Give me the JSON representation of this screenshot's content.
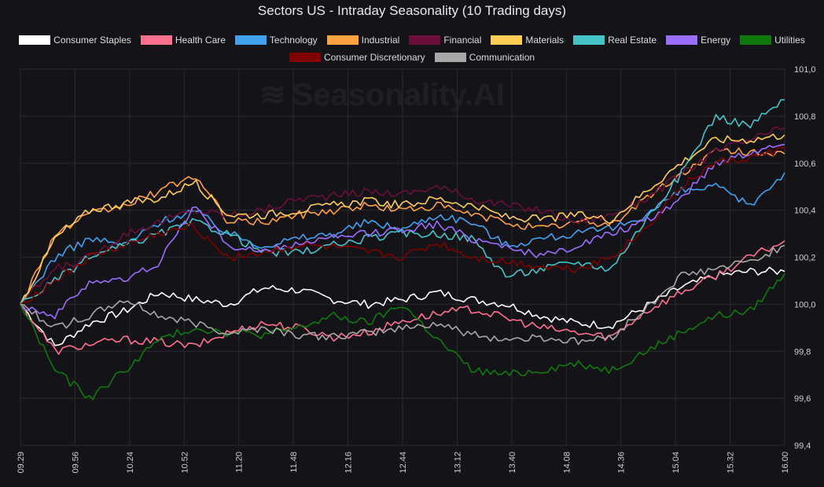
{
  "title": "Sectors US - Intraday Seasonality (10 Trading days)",
  "watermark": "Seasonality.AI",
  "legend": [
    {
      "name": "Consumer Staples",
      "color": "#ffffff"
    },
    {
      "name": "Health Care",
      "color": "#ff6f8e"
    },
    {
      "name": "Technology",
      "color": "#3ea2f0"
    },
    {
      "name": "Industrial",
      "color": "#ffa040"
    },
    {
      "name": "Financial",
      "color": "#6b0e3c"
    },
    {
      "name": "Materials",
      "color": "#ffcc55"
    },
    {
      "name": "Real Estate",
      "color": "#45c4c8"
    },
    {
      "name": "Energy",
      "color": "#9b6dff"
    },
    {
      "name": "Utilities",
      "color": "#0e7a0e"
    },
    {
      "name": "Consumer Discretionary",
      "color": "#800000"
    },
    {
      "name": "Communication",
      "color": "#a8a8a8"
    }
  ],
  "chart_data": {
    "type": "line",
    "title": "Sectors US - Intraday Seasonality (10 Trading days)",
    "xlabel": "",
    "ylabel": "",
    "x_ticks": [
      "09.29",
      "09.56",
      "10.24",
      "10.52",
      "11.20",
      "11.48",
      "12.16",
      "12.44",
      "13.12",
      "13.40",
      "14.08",
      "14.36",
      "15.04",
      "15.32",
      "16.00"
    ],
    "y_ticks": [
      "99,4",
      "99,6",
      "99,8",
      "100,0",
      "100,2",
      "100,4",
      "100,6",
      "100,8",
      "101,0"
    ],
    "ylim": [
      99.4,
      101.0
    ],
    "grid": true,
    "legend_position": "top",
    "series": [
      {
        "name": "Consumer Staples",
        "color": "#ffffff",
        "values": [
          100.0,
          99.82,
          99.92,
          99.97,
          100.05,
          100.02,
          100.0,
          100.07,
          100.06,
          100.02,
          100.0,
          100.02,
          100.05,
          100.02,
          100.0,
          99.95,
          99.92,
          99.91,
          99.99,
          100.07,
          100.12,
          100.14,
          100.14
        ]
      },
      {
        "name": "Health Care",
        "color": "#ff6f8e",
        "values": [
          100.0,
          99.8,
          99.83,
          99.85,
          99.84,
          99.82,
          99.88,
          99.92,
          99.9,
          99.86,
          99.88,
          99.93,
          99.96,
          99.98,
          99.94,
          99.9,
          99.88,
          99.86,
          99.97,
          100.05,
          100.12,
          100.2,
          100.27
        ]
      },
      {
        "name": "Technology",
        "color": "#3ea2f0",
        "values": [
          100.0,
          100.2,
          100.28,
          100.25,
          100.35,
          100.4,
          100.3,
          100.25,
          100.28,
          100.3,
          100.35,
          100.32,
          100.38,
          100.35,
          100.25,
          100.28,
          100.3,
          100.32,
          100.38,
          100.48,
          100.5,
          100.42,
          100.56
        ]
      },
      {
        "name": "Industrial",
        "color": "#ffa040",
        "values": [
          100.0,
          100.3,
          100.38,
          100.42,
          100.48,
          100.55,
          100.35,
          100.35,
          100.38,
          100.4,
          100.42,
          100.4,
          100.42,
          100.38,
          100.35,
          100.32,
          100.35,
          100.34,
          100.45,
          100.55,
          100.65,
          100.65,
          100.64
        ]
      },
      {
        "name": "Financial",
        "color": "#6b0e3c",
        "values": [
          100.0,
          100.15,
          100.2,
          100.3,
          100.35,
          100.4,
          100.38,
          100.4,
          100.45,
          100.46,
          100.48,
          100.47,
          100.5,
          100.45,
          100.42,
          100.4,
          100.35,
          100.38,
          100.45,
          100.55,
          100.65,
          100.7,
          100.75
        ]
      },
      {
        "name": "Materials",
        "color": "#ffcc55",
        "values": [
          100.0,
          100.28,
          100.4,
          100.43,
          100.45,
          100.52,
          100.38,
          100.38,
          100.4,
          100.42,
          100.44,
          100.42,
          100.45,
          100.42,
          100.37,
          100.36,
          100.38,
          100.36,
          100.48,
          100.6,
          100.7,
          100.7,
          100.72
        ]
      },
      {
        "name": "Real Estate",
        "color": "#45c4c8",
        "values": [
          100.0,
          100.1,
          100.2,
          100.25,
          100.3,
          100.35,
          100.3,
          100.22,
          100.22,
          100.25,
          100.28,
          100.3,
          100.3,
          100.28,
          100.12,
          100.15,
          100.18,
          100.15,
          100.36,
          100.55,
          100.8,
          100.76,
          100.87
        ]
      },
      {
        "name": "Energy",
        "color": "#9b6dff",
        "values": [
          100.0,
          99.95,
          100.1,
          100.1,
          100.18,
          100.42,
          100.25,
          100.22,
          100.26,
          100.28,
          100.3,
          100.32,
          100.34,
          100.28,
          100.25,
          100.2,
          100.25,
          100.3,
          100.35,
          100.45,
          100.6,
          100.65,
          100.68
        ]
      },
      {
        "name": "Utilities",
        "color": "#0e7a0e",
        "values": [
          100.0,
          99.72,
          99.6,
          99.72,
          99.85,
          99.9,
          99.88,
          99.87,
          99.9,
          99.95,
          99.92,
          100.0,
          99.85,
          99.72,
          99.7,
          99.72,
          99.75,
          99.72,
          99.8,
          99.88,
          99.95,
          99.97,
          100.13
        ]
      },
      {
        "name": "Consumer Discretionary",
        "color": "#800000",
        "values": [
          100.0,
          100.1,
          100.2,
          100.25,
          100.3,
          100.33,
          100.2,
          100.22,
          100.25,
          100.24,
          100.22,
          100.2,
          100.26,
          100.2,
          100.18,
          100.16,
          100.15,
          100.2,
          100.32,
          100.5,
          100.6,
          100.62,
          100.66
        ]
      },
      {
        "name": "Communication",
        "color": "#a8a8a8",
        "values": [
          100.0,
          99.9,
          99.95,
          100.02,
          99.95,
          99.92,
          99.88,
          99.9,
          99.87,
          99.86,
          99.88,
          99.9,
          99.92,
          99.87,
          99.85,
          99.86,
          99.84,
          99.86,
          99.98,
          100.12,
          100.15,
          100.18,
          100.25
        ]
      }
    ]
  }
}
